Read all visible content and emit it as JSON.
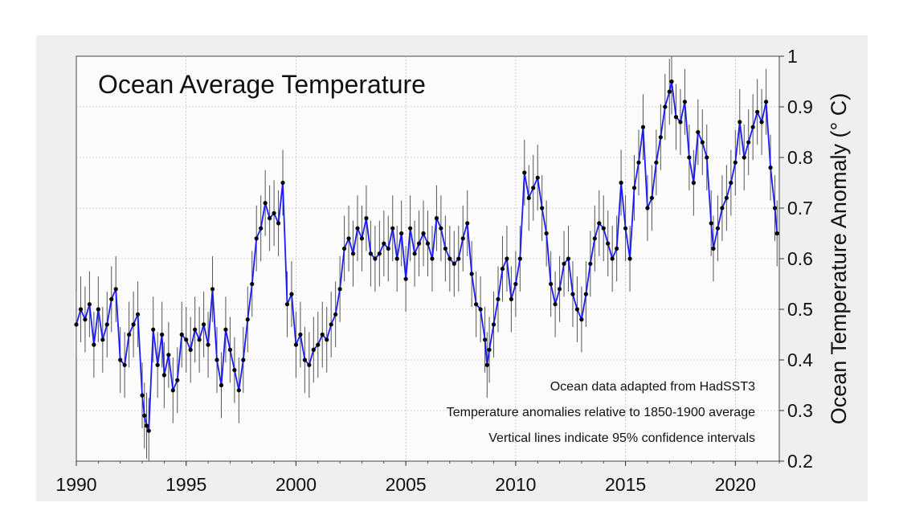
{
  "chart_data": {
    "type": "line",
    "title": "Ocean Average Temperature",
    "xlabel": "",
    "ylabel": "Ocean Temperature Anomaly (° C)",
    "xlim": [
      1990,
      2022
    ],
    "ylim": [
      0.2,
      1.0
    ],
    "x_ticks": [
      "1990",
      "1995",
      "2000",
      "2005",
      "2010",
      "2015",
      "2020"
    ],
    "y_ticks": [
      "0.2",
      "0.3",
      "0.4",
      "0.5",
      "0.6",
      "0.7",
      "0.8",
      "0.9",
      "1"
    ],
    "y_axis_side": "right",
    "grid": true,
    "annotations": [
      "Ocean data adapted from HadSST3",
      "Temperature anomalies relative to 1850-1900 average",
      "Vertical lines indicate 95% confidence intervals"
    ],
    "colors": {
      "line": "#1a1aff",
      "points": "#000000",
      "error_bars": "#555555",
      "plot_bg": "#fcfcfc",
      "frame_bg": "#efefef"
    },
    "series": [
      {
        "error_bar_halfwidth": 0.065,
        "points": [
          [
            1990.0,
            0.47
          ],
          [
            1990.2,
            0.5
          ],
          [
            1990.4,
            0.48
          ],
          [
            1990.6,
            0.51
          ],
          [
            1990.8,
            0.43
          ],
          [
            1991.0,
            0.5
          ],
          [
            1991.2,
            0.44
          ],
          [
            1991.4,
            0.47
          ],
          [
            1991.6,
            0.52
          ],
          [
            1991.8,
            0.54
          ],
          [
            1992.0,
            0.4
          ],
          [
            1992.2,
            0.39
          ],
          [
            1992.4,
            0.45
          ],
          [
            1992.6,
            0.47
          ],
          [
            1992.8,
            0.49
          ],
          [
            1993.0,
            0.33
          ],
          [
            1993.1,
            0.29
          ],
          [
            1993.2,
            0.27
          ],
          [
            1993.3,
            0.26
          ],
          [
            1993.5,
            0.46
          ],
          [
            1993.7,
            0.39
          ],
          [
            1993.9,
            0.45
          ],
          [
            1994.0,
            0.37
          ],
          [
            1994.2,
            0.41
          ],
          [
            1994.4,
            0.34
          ],
          [
            1994.6,
            0.36
          ],
          [
            1994.8,
            0.45
          ],
          [
            1995.0,
            0.44
          ],
          [
            1995.2,
            0.42
          ],
          [
            1995.4,
            0.46
          ],
          [
            1995.6,
            0.44
          ],
          [
            1995.8,
            0.47
          ],
          [
            1996.0,
            0.43
          ],
          [
            1996.2,
            0.54
          ],
          [
            1996.4,
            0.4
          ],
          [
            1996.6,
            0.35
          ],
          [
            1996.8,
            0.46
          ],
          [
            1997.0,
            0.42
          ],
          [
            1997.2,
            0.38
          ],
          [
            1997.4,
            0.34
          ],
          [
            1997.6,
            0.4
          ],
          [
            1997.8,
            0.48
          ],
          [
            1998.0,
            0.55
          ],
          [
            1998.2,
            0.64
          ],
          [
            1998.4,
            0.66
          ],
          [
            1998.6,
            0.71
          ],
          [
            1998.8,
            0.68
          ],
          [
            1999.0,
            0.69
          ],
          [
            1999.2,
            0.67
          ],
          [
            1999.4,
            0.75
          ],
          [
            1999.6,
            0.51
          ],
          [
            1999.8,
            0.53
          ],
          [
            2000.0,
            0.43
          ],
          [
            2000.2,
            0.45
          ],
          [
            2000.4,
            0.4
          ],
          [
            2000.6,
            0.39
          ],
          [
            2000.8,
            0.42
          ],
          [
            2001.0,
            0.43
          ],
          [
            2001.2,
            0.45
          ],
          [
            2001.4,
            0.44
          ],
          [
            2001.6,
            0.47
          ],
          [
            2001.8,
            0.49
          ],
          [
            2002.0,
            0.54
          ],
          [
            2002.2,
            0.62
          ],
          [
            2002.4,
            0.64
          ],
          [
            2002.6,
            0.61
          ],
          [
            2002.8,
            0.66
          ],
          [
            2003.0,
            0.64
          ],
          [
            2003.2,
            0.68
          ],
          [
            2003.4,
            0.61
          ],
          [
            2003.6,
            0.6
          ],
          [
            2003.8,
            0.61
          ],
          [
            2004.0,
            0.63
          ],
          [
            2004.2,
            0.62
          ],
          [
            2004.4,
            0.66
          ],
          [
            2004.6,
            0.6
          ],
          [
            2004.8,
            0.65
          ],
          [
            2005.0,
            0.56
          ],
          [
            2005.2,
            0.66
          ],
          [
            2005.4,
            0.61
          ],
          [
            2005.6,
            0.63
          ],
          [
            2005.8,
            0.65
          ],
          [
            2006.0,
            0.63
          ],
          [
            2006.2,
            0.6
          ],
          [
            2006.4,
            0.68
          ],
          [
            2006.6,
            0.66
          ],
          [
            2006.8,
            0.62
          ],
          [
            2007.0,
            0.6
          ],
          [
            2007.2,
            0.59
          ],
          [
            2007.4,
            0.6
          ],
          [
            2007.6,
            0.64
          ],
          [
            2007.8,
            0.67
          ],
          [
            2008.0,
            0.57
          ],
          [
            2008.2,
            0.51
          ],
          [
            2008.4,
            0.5
          ],
          [
            2008.6,
            0.44
          ],
          [
            2008.7,
            0.39
          ],
          [
            2008.8,
            0.42
          ],
          [
            2009.0,
            0.47
          ],
          [
            2009.2,
            0.52
          ],
          [
            2009.4,
            0.58
          ],
          [
            2009.6,
            0.6
          ],
          [
            2009.8,
            0.52
          ],
          [
            2010.0,
            0.55
          ],
          [
            2010.2,
            0.6
          ],
          [
            2010.4,
            0.77
          ],
          [
            2010.6,
            0.72
          ],
          [
            2010.8,
            0.74
          ],
          [
            2011.0,
            0.76
          ],
          [
            2011.2,
            0.7
          ],
          [
            2011.4,
            0.65
          ],
          [
            2011.6,
            0.55
          ],
          [
            2011.8,
            0.51
          ],
          [
            2012.0,
            0.54
          ],
          [
            2012.2,
            0.59
          ],
          [
            2012.4,
            0.6
          ],
          [
            2012.6,
            0.53
          ],
          [
            2012.8,
            0.5
          ],
          [
            2013.0,
            0.48
          ],
          [
            2013.2,
            0.53
          ],
          [
            2013.4,
            0.59
          ],
          [
            2013.6,
            0.64
          ],
          [
            2013.8,
            0.67
          ],
          [
            2014.0,
            0.66
          ],
          [
            2014.2,
            0.63
          ],
          [
            2014.4,
            0.6
          ],
          [
            2014.6,
            0.62
          ],
          [
            2014.8,
            0.75
          ],
          [
            2015.0,
            0.66
          ],
          [
            2015.2,
            0.6
          ],
          [
            2015.4,
            0.74
          ],
          [
            2015.6,
            0.79
          ],
          [
            2015.8,
            0.86
          ],
          [
            2016.0,
            0.7
          ],
          [
            2016.2,
            0.72
          ],
          [
            2016.4,
            0.79
          ],
          [
            2016.6,
            0.84
          ],
          [
            2016.8,
            0.9
          ],
          [
            2017.0,
            0.93
          ],
          [
            2017.1,
            0.95
          ],
          [
            2017.3,
            0.88
          ],
          [
            2017.5,
            0.87
          ],
          [
            2017.7,
            0.91
          ],
          [
            2017.9,
            0.8
          ],
          [
            2018.1,
            0.75
          ],
          [
            2018.3,
            0.85
          ],
          [
            2018.5,
            0.83
          ],
          [
            2018.7,
            0.8
          ],
          [
            2018.9,
            0.67
          ],
          [
            2019.0,
            0.62
          ],
          [
            2019.2,
            0.66
          ],
          [
            2019.4,
            0.7
          ],
          [
            2019.6,
            0.72
          ],
          [
            2019.8,
            0.75
          ],
          [
            2020.0,
            0.79
          ],
          [
            2020.2,
            0.87
          ],
          [
            2020.4,
            0.8
          ],
          [
            2020.6,
            0.83
          ],
          [
            2020.8,
            0.86
          ],
          [
            2021.0,
            0.89
          ],
          [
            2021.2,
            0.87
          ],
          [
            2021.4,
            0.91
          ],
          [
            2021.6,
            0.78
          ],
          [
            2021.8,
            0.7
          ],
          [
            2021.9,
            0.65
          ]
        ]
      }
    ]
  }
}
